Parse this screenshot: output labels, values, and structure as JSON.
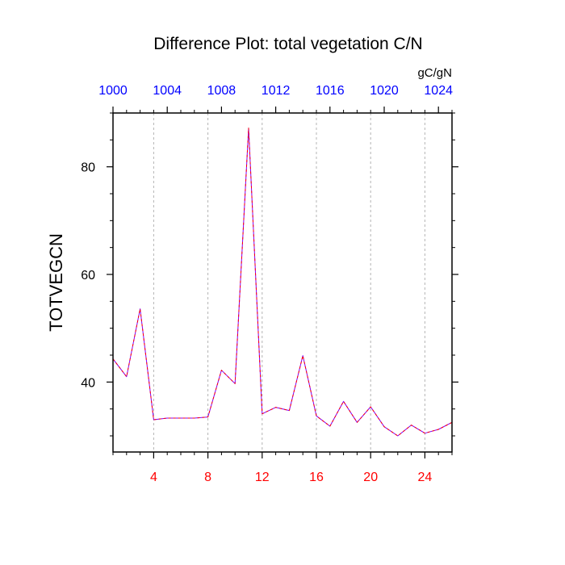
{
  "chart_data": {
    "type": "line",
    "title": "Difference Plot: total vegetation C/N",
    "ylabel": "TOTVEGCN",
    "units": "gC/gN",
    "xlim": [
      1,
      26
    ],
    "ylim": [
      27,
      90
    ],
    "grid": "vertical dashed at bottom-axis major ticks",
    "bottom_axis": {
      "tick_labels": [
        "4",
        "8",
        "12",
        "16",
        "20",
        "24"
      ],
      "major_ticks": [
        4,
        8,
        12,
        16,
        20,
        24
      ],
      "color": "#ff0000"
    },
    "top_axis": {
      "tick_labels": [
        "1000",
        "1004",
        "1008",
        "1012",
        "1016",
        "1020",
        "1024"
      ],
      "major_ticks": [
        1000,
        1004,
        1008,
        1012,
        1016,
        1020,
        1024
      ],
      "range": [
        1000,
        1025
      ],
      "color": "#0000ff"
    },
    "left_axis": {
      "tick_labels": [
        "40",
        "60",
        "80"
      ],
      "major_ticks": [
        40,
        60,
        80
      ]
    },
    "series": [
      {
        "color": "#8000ff",
        "dash_color": "#ff0000",
        "x": [
          1,
          2,
          3,
          4,
          5,
          6,
          7,
          8,
          9,
          10,
          11,
          12,
          13,
          14,
          15,
          16,
          17,
          18,
          19,
          20,
          21,
          22,
          23,
          24,
          25,
          26
        ],
        "values": [
          44.3,
          41.0,
          53.6,
          33.0,
          33.3,
          33.3,
          33.3,
          33.5,
          42.2,
          39.7,
          87.2,
          34.1,
          35.3,
          34.7,
          44.9,
          33.7,
          31.8,
          36.4,
          32.5,
          35.4,
          31.7,
          30.0,
          32.0,
          30.5,
          31.2,
          32.5
        ]
      }
    ]
  }
}
